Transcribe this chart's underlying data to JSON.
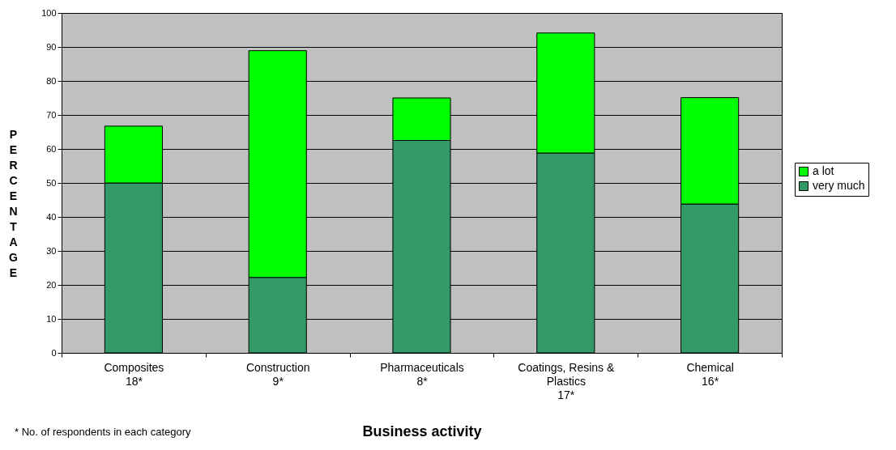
{
  "chart_data": {
    "type": "bar",
    "stacked": true,
    "xlabel": "Business activity",
    "ylabel": "PERCENTAGE",
    "categories": [
      "Composites\n18*",
      "Construction\n9*",
      "Pharmaceuticals\n8*",
      "Coatings, Resins &\nPlastics\n\n17*",
      "Chemical\n16*"
    ],
    "series": [
      {
        "name": "very much",
        "color": "#339966",
        "values": [
          50,
          22.2,
          62.5,
          58.8,
          43.8
        ]
      },
      {
        "name": "a lot",
        "color": "#00ff00",
        "values": [
          16.7,
          66.7,
          12.5,
          35.3,
          31.3
        ]
      }
    ],
    "ylim": [
      0,
      100
    ],
    "yticks": [
      0,
      10,
      20,
      30,
      40,
      50,
      60,
      70,
      80,
      90,
      100
    ],
    "grid": "y",
    "legend": "right",
    "annotations": [
      "* No. of respondents in each category"
    ]
  }
}
